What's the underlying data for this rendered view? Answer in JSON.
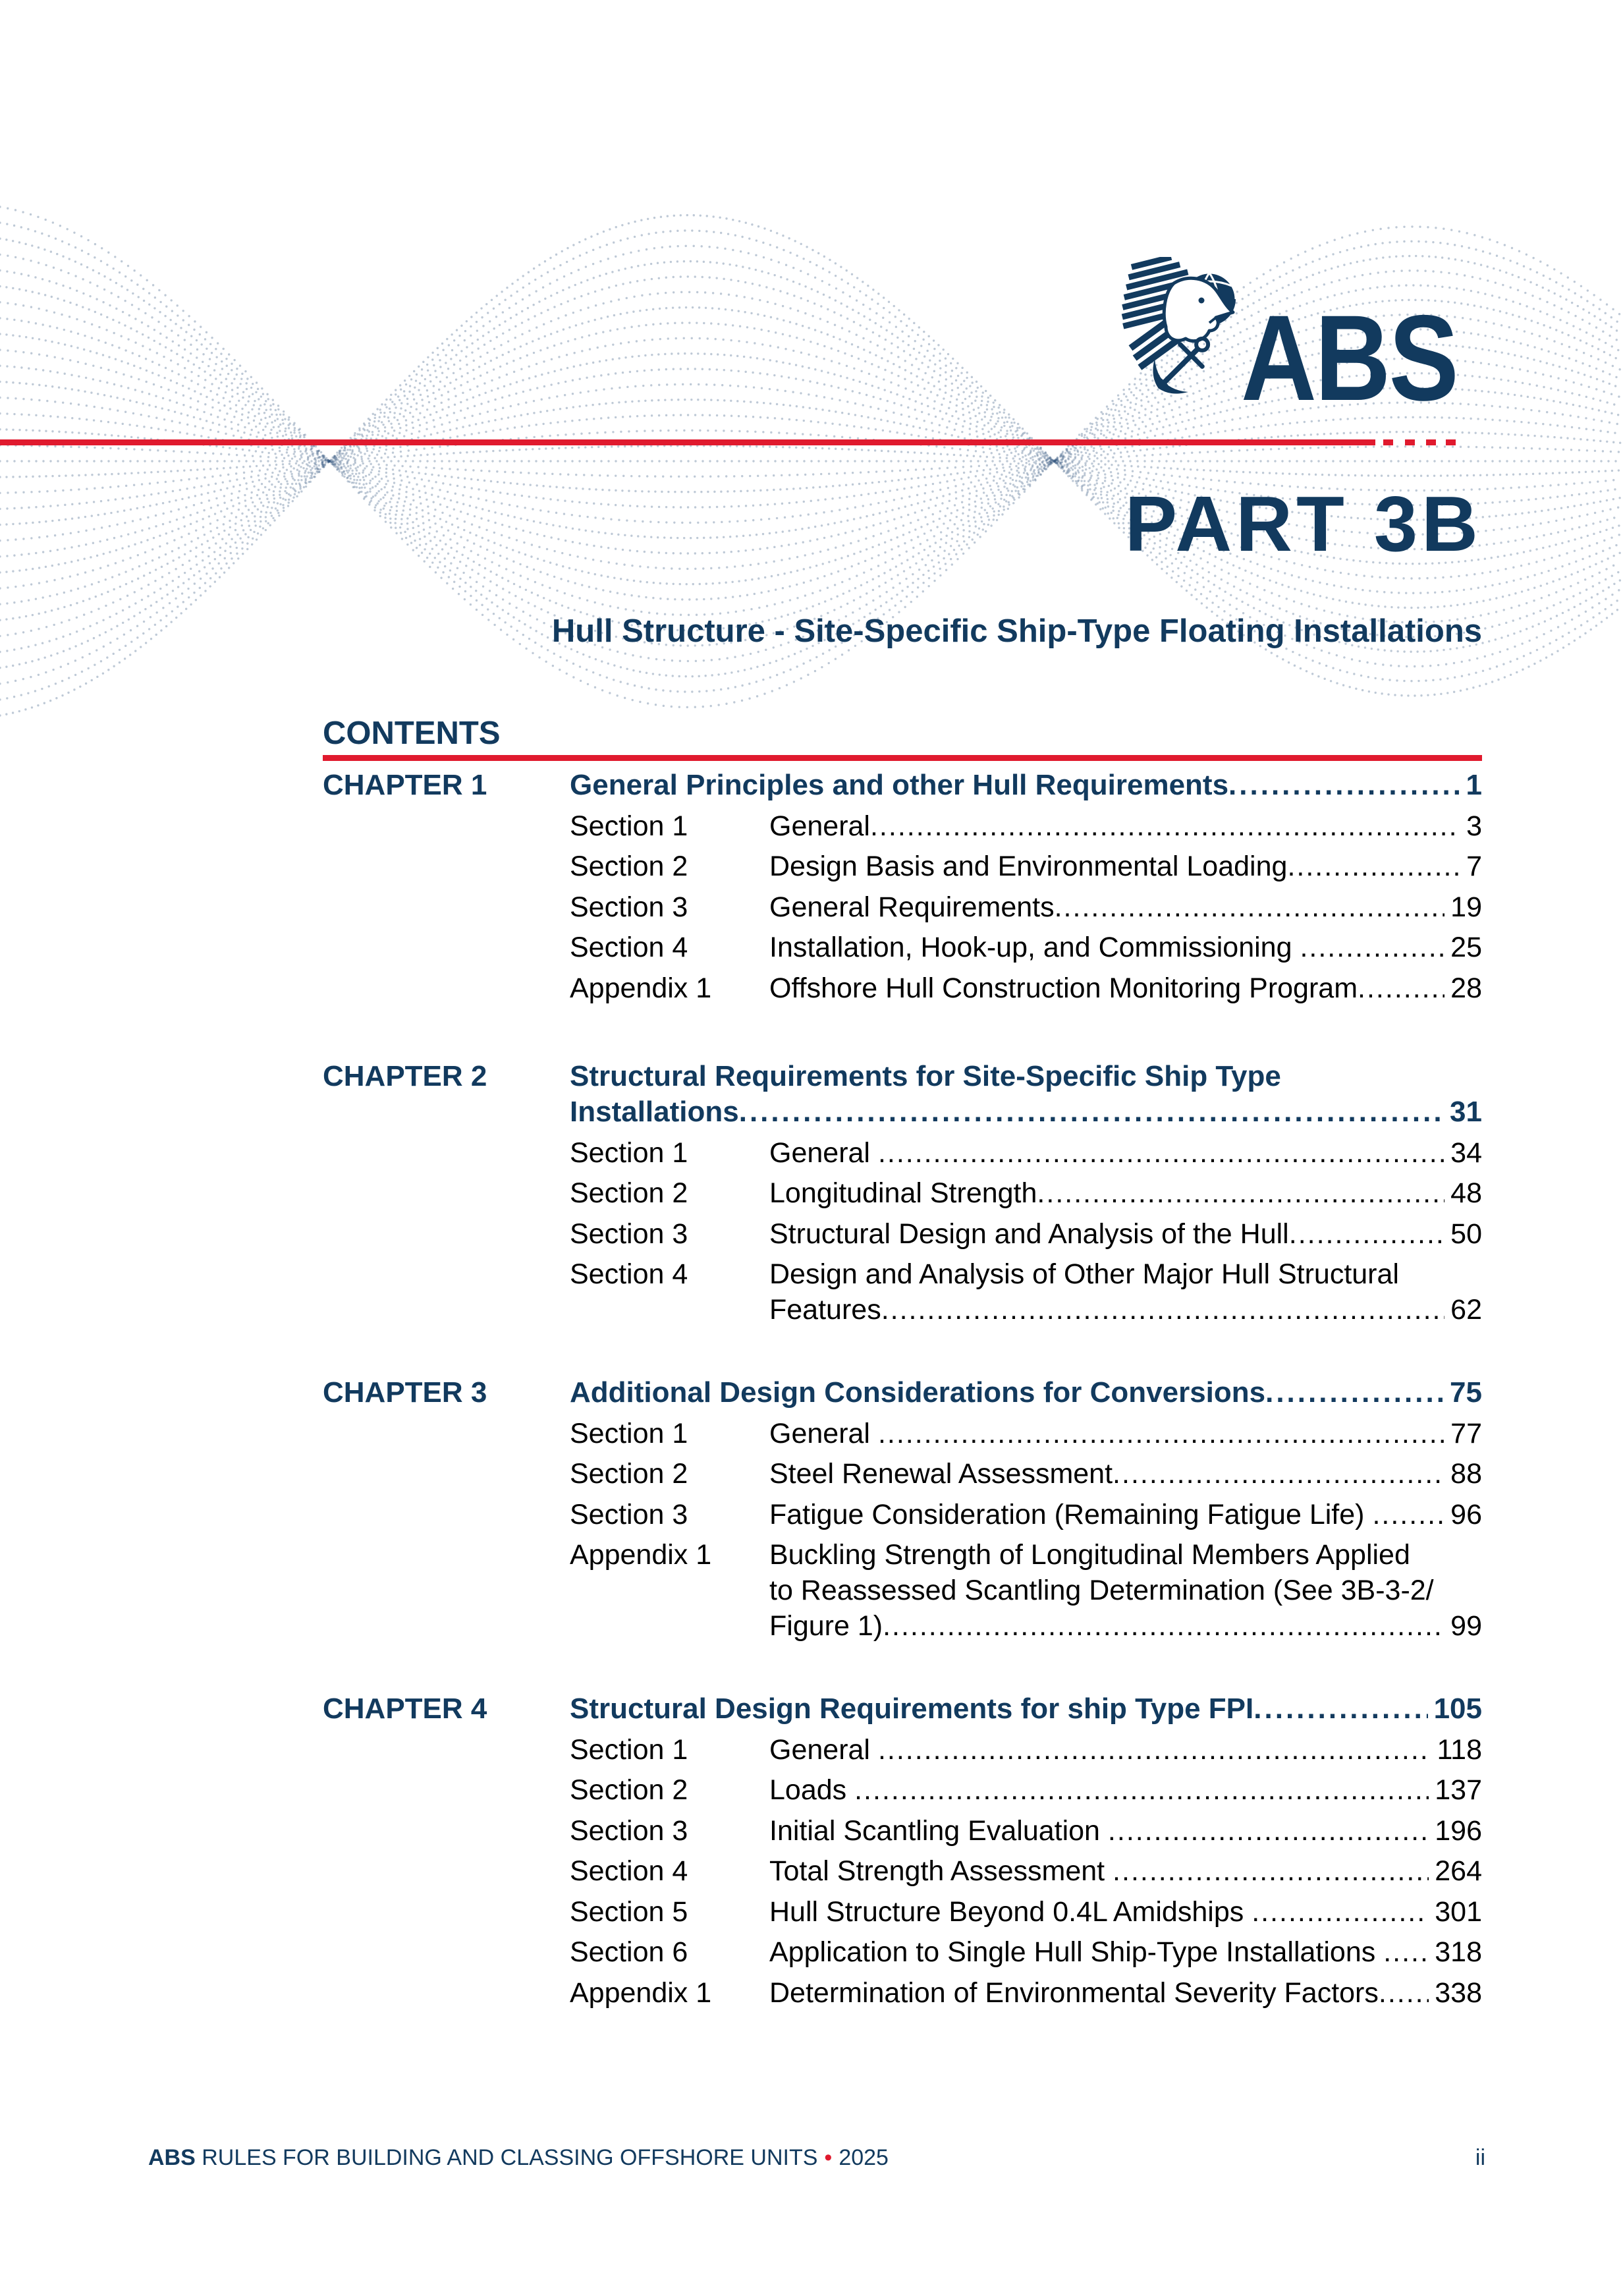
{
  "header": {
    "logo_wordmark": "ABS",
    "part_label": "PART 3B"
  },
  "title": "Hull Structure - Site-Specific Ship-Type Floating Installations",
  "contents_heading": "CONTENTS",
  "toc": [
    {
      "chapter_label": "CHAPTER 1",
      "title_lines": [
        "General Principles and other Hull Requirements"
      ],
      "page": "1",
      "entries": [
        {
          "label": "Section 1",
          "lines": [
            "General"
          ],
          "page": "3"
        },
        {
          "label": "Section 2",
          "lines": [
            "Design Basis and Environmental Loading"
          ],
          "page": "7"
        },
        {
          "label": "Section 3",
          "lines": [
            "General Requirements"
          ],
          "page": "19"
        },
        {
          "label": "Section 4",
          "lines": [
            "Installation, Hook-up, and Commissioning "
          ],
          "page": "25"
        },
        {
          "label": "Appendix 1",
          "lines": [
            "Offshore Hull Construction Monitoring Program"
          ],
          "page": "28"
        }
      ]
    },
    {
      "chapter_label": "CHAPTER 2",
      "title_lines": [
        "Structural Requirements for Site-Specific Ship Type",
        "Installations"
      ],
      "page": "31",
      "entries": [
        {
          "label": "Section 1",
          "lines": [
            "General "
          ],
          "page": "34"
        },
        {
          "label": "Section 2",
          "lines": [
            "Longitudinal Strength"
          ],
          "page": "48"
        },
        {
          "label": "Section 3",
          "lines": [
            "Structural Design and Analysis of the Hull"
          ],
          "page": "50"
        },
        {
          "label": "Section 4",
          "lines": [
            "Design and Analysis of Other Major Hull Structural",
            "Features"
          ],
          "page": "62"
        }
      ]
    },
    {
      "chapter_label": "CHAPTER 3",
      "title_lines": [
        "Additional Design Considerations for Conversions"
      ],
      "page": "75",
      "entries": [
        {
          "label": "Section 1",
          "lines": [
            "General "
          ],
          "page": "77"
        },
        {
          "label": "Section 2",
          "lines": [
            "Steel Renewal Assessment"
          ],
          "page": "88"
        },
        {
          "label": "Section 3",
          "lines": [
            "Fatigue Consideration (Remaining Fatigue Life) "
          ],
          "page": "96"
        },
        {
          "label": "Appendix 1",
          "lines": [
            "Buckling Strength of Longitudinal Members Applied",
            "to Reassessed Scantling Determination (See 3B-3-2/",
            "Figure 1)"
          ],
          "page": "99"
        }
      ]
    },
    {
      "chapter_label": "CHAPTER 4",
      "title_lines": [
        "Structural Design Requirements for ship Type FPI"
      ],
      "page": "105",
      "entries": [
        {
          "label": "Section 1",
          "lines": [
            "General "
          ],
          "page": "118"
        },
        {
          "label": "Section 2",
          "lines": [
            "Loads "
          ],
          "page": "137"
        },
        {
          "label": "Section 3",
          "lines": [
            "Initial Scantling Evaluation "
          ],
          "page": "196"
        },
        {
          "label": "Section 4",
          "lines": [
            "Total Strength Assessment "
          ],
          "page": "264"
        },
        {
          "label": "Section 5",
          "lines": [
            "Hull Structure Beyond 0.4L Amidships "
          ],
          "page": "301"
        },
        {
          "label": "Section 6",
          "lines": [
            "Application to Single Hull Ship-Type Installations "
          ],
          "page": "318"
        },
        {
          "label": "Appendix 1",
          "lines": [
            "Determination of Environmental Severity Factors"
          ],
          "page": "338"
        }
      ]
    }
  ],
  "footer": {
    "org_bold": "ABS",
    "text": " RULES FOR BUILDING AND CLASSING OFFSHORE UNITS",
    "separator": "•",
    "year": "2025",
    "page_number": "ii"
  },
  "colors": {
    "navy": "#123a5e",
    "red": "#e01a2e",
    "text": "#000000"
  }
}
